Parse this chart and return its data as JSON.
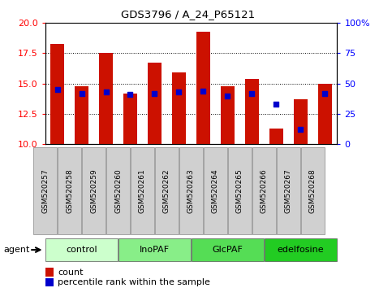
{
  "title": "GDS3796 / A_24_P65121",
  "samples": [
    "GSM520257",
    "GSM520258",
    "GSM520259",
    "GSM520260",
    "GSM520261",
    "GSM520262",
    "GSM520263",
    "GSM520264",
    "GSM520265",
    "GSM520266",
    "GSM520267",
    "GSM520268"
  ],
  "counts": [
    18.3,
    14.8,
    17.5,
    14.2,
    16.7,
    15.9,
    19.3,
    14.8,
    15.4,
    11.3,
    13.7,
    15.0
  ],
  "percentiles": [
    45,
    42,
    43,
    41,
    42,
    43,
    44,
    40,
    42,
    33,
    12,
    42
  ],
  "ylim_left": [
    10,
    20
  ],
  "ylim_right": [
    0,
    100
  ],
  "yticks_left": [
    10,
    12.5,
    15,
    17.5,
    20
  ],
  "yticks_right": [
    0,
    25,
    50,
    75,
    100
  ],
  "groups": [
    {
      "label": "control",
      "start": 0,
      "end": 3,
      "color": "#ccffcc"
    },
    {
      "label": "InoPAF",
      "start": 3,
      "end": 6,
      "color": "#88ee88"
    },
    {
      "label": "GlcPAF",
      "start": 6,
      "end": 9,
      "color": "#55dd55"
    },
    {
      "label": "edelfosine",
      "start": 9,
      "end": 12,
      "color": "#22cc22"
    }
  ],
  "bar_color": "#cc1100",
  "dot_color": "#0000cc",
  "bar_width": 0.55,
  "grid_linestyle": "dotted",
  "xlabel_agent": "agent",
  "legend_count": "count",
  "legend_percentile": "percentile rank within the sample",
  "tick_label_bg": "#d0d0d0",
  "plot_bg": "#ffffff"
}
